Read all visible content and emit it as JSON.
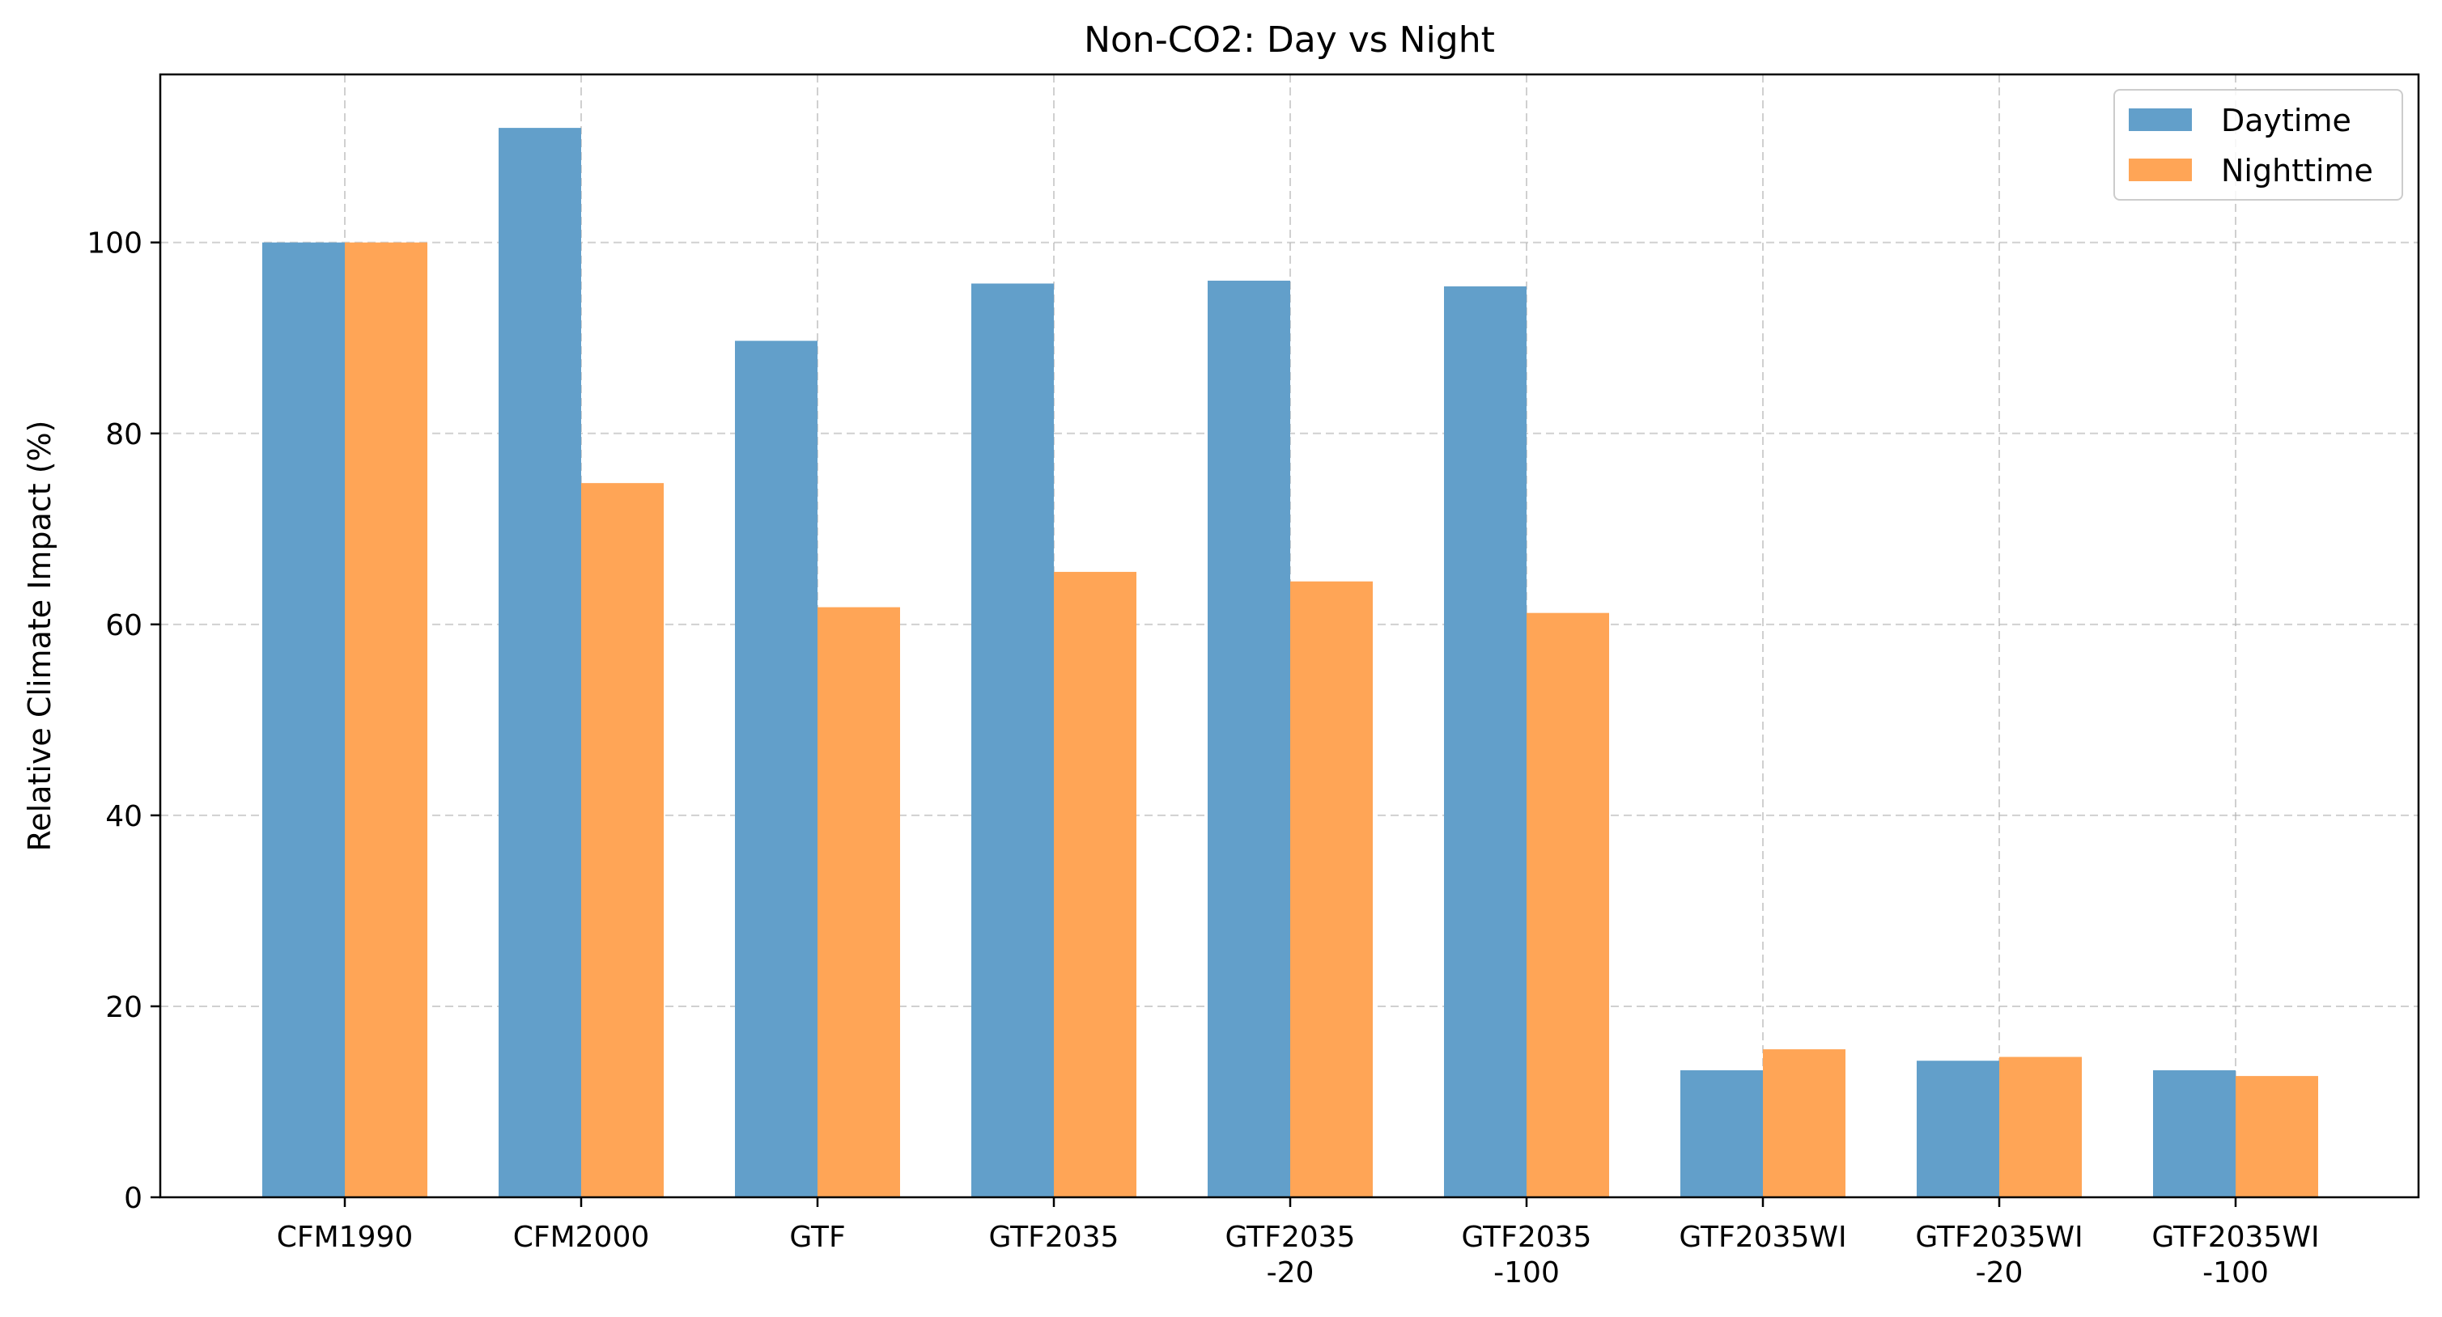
{
  "chart_data": {
    "type": "bar",
    "title": "Non-CO2: Day vs Night",
    "xlabel": "",
    "ylabel": "Relative Climate Impact (%)",
    "ylim": [
      0,
      117.6
    ],
    "yticks": [
      0,
      20,
      40,
      60,
      80,
      100
    ],
    "grid": true,
    "legend_position": "top-right",
    "categories": [
      [
        "CFM1990"
      ],
      [
        "CFM2000"
      ],
      [
        "GTF"
      ],
      [
        "GTF2035"
      ],
      [
        "GTF2035",
        "-20"
      ],
      [
        "GTF2035",
        "-100"
      ],
      [
        "GTF2035WI"
      ],
      [
        "GTF2035WI",
        "-20"
      ],
      [
        "GTF2035WI",
        "-100"
      ]
    ],
    "series": [
      {
        "name": "Daytime",
        "color": "#629fca",
        "values": [
          100,
          112,
          89.7,
          95.7,
          96.0,
          95.4,
          13.3,
          14.3,
          13.3
        ]
      },
      {
        "name": "Nighttime",
        "color": "#ffa556",
        "values": [
          100,
          74.8,
          61.8,
          65.5,
          64.5,
          61.2,
          15.5,
          14.7,
          12.7
        ]
      }
    ]
  }
}
